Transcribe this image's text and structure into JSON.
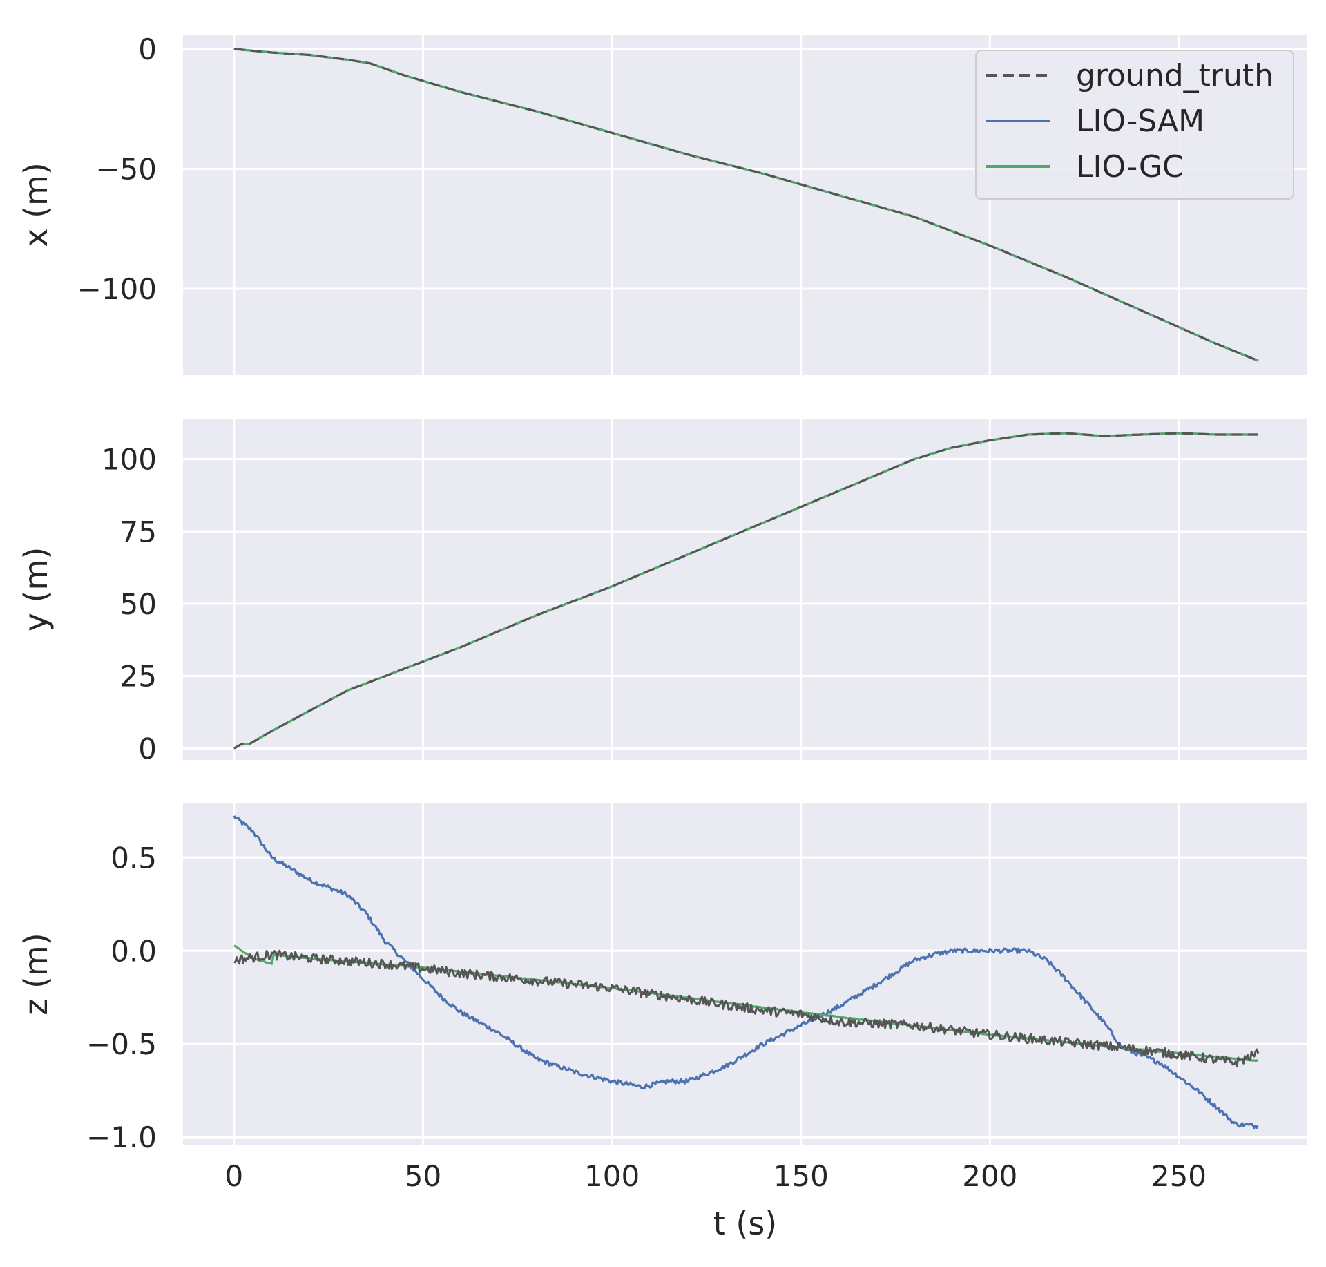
{
  "chart_data": {
    "type": "line",
    "xlabel": "t (s)",
    "xlim": [
      -13.5,
      284
    ],
    "xticks": [
      0,
      50,
      100,
      150,
      200,
      250
    ],
    "xtick_labels": [
      "0",
      "50",
      "100",
      "150",
      "200",
      "250"
    ],
    "grid": true,
    "legend": {
      "placement": "top-right",
      "panel": 0,
      "entries": [
        {
          "name": "ground_truth",
          "color": "#555555",
          "dash": "dashed"
        },
        {
          "name": "LIO-SAM",
          "color": "#4c72b0",
          "dash": "solid"
        },
        {
          "name": "LIO-GC",
          "color": "#55a868",
          "dash": "solid"
        }
      ]
    },
    "colors": {
      "ground_truth": "#555555",
      "LIO-SAM": "#4c72b0",
      "LIO-GC": "#55a868",
      "background": "#eaeaf2"
    },
    "panels": [
      {
        "ylabel": "x (m)",
        "ylim": [
          -136,
          6
        ],
        "yticks": [
          0,
          -50,
          -100
        ],
        "ytick_labels": [
          "0",
          "−50",
          "−100"
        ],
        "series": [
          {
            "name": "ground_truth",
            "noise": 0,
            "x": [
              0,
              10,
              20,
              30,
              36,
              45,
              60,
              80,
              100,
              120,
              140,
              160,
              180,
              200,
              220,
              240,
              260,
              271
            ],
            "y": [
              0,
              -1.5,
              -2.5,
              -4.5,
              -6,
              -11,
              -18,
              -26,
              -35,
              -44,
              -52,
              -61,
              -70,
              -82,
              -95,
              -109,
              -123,
              -130
            ]
          },
          {
            "name": "LIO-SAM",
            "noise": 0,
            "x": [
              0,
              10,
              20,
              30,
              36,
              45,
              60,
              80,
              100,
              120,
              140,
              160,
              180,
              200,
              220,
              240,
              260,
              271
            ],
            "y": [
              0,
              -1.5,
              -2.5,
              -4.5,
              -6,
              -11,
              -18,
              -26,
              -35,
              -44,
              -52,
              -61,
              -70,
              -82,
              -95,
              -109,
              -123,
              -130
            ]
          },
          {
            "name": "LIO-GC",
            "noise": 0,
            "x": [
              0,
              10,
              20,
              30,
              36,
              45,
              60,
              80,
              100,
              120,
              140,
              160,
              180,
              200,
              220,
              240,
              260,
              271
            ],
            "y": [
              0,
              -1.5,
              -2.5,
              -4.5,
              -6,
              -11,
              -18,
              -26,
              -35,
              -44,
              -52,
              -61,
              -70,
              -82,
              -95,
              -109,
              -123,
              -130
            ]
          }
        ]
      },
      {
        "ylabel": "y (m)",
        "ylim": [
          -4,
          114
        ],
        "yticks": [
          0,
          25,
          50,
          75,
          100
        ],
        "ytick_labels": [
          "0",
          "25",
          "50",
          "75",
          "100"
        ],
        "series": [
          {
            "name": "ground_truth",
            "noise": 0,
            "x": [
              0,
              2,
              4,
              10,
              20,
              30,
              40,
              50,
              60,
              80,
              100,
              120,
              140,
              160,
              180,
              190,
              200,
              210,
              220,
              230,
              240,
              250,
              260,
              271
            ],
            "y": [
              0,
              1.5,
              1.5,
              6,
              13,
              20,
              25,
              30,
              35,
              46,
              56,
              67,
              78,
              89,
              100,
              104,
              106.5,
              108.5,
              109,
              108,
              108.5,
              109,
              108.5,
              108.5
            ]
          },
          {
            "name": "LIO-SAM",
            "noise": 0,
            "x": [
              0,
              2,
              4,
              10,
              20,
              30,
              40,
              50,
              60,
              80,
              100,
              120,
              140,
              160,
              180,
              190,
              200,
              210,
              220,
              230,
              240,
              250,
              260,
              271
            ],
            "y": [
              0,
              1.5,
              1.5,
              6,
              13,
              20,
              25,
              30,
              35,
              46,
              56,
              67,
              78,
              89,
              100,
              104,
              106.5,
              108.5,
              109,
              108,
              108.5,
              109,
              108.5,
              108.5
            ]
          },
          {
            "name": "LIO-GC",
            "noise": 0,
            "x": [
              0,
              2,
              4,
              10,
              20,
              30,
              40,
              50,
              60,
              80,
              100,
              120,
              140,
              160,
              180,
              190,
              200,
              210,
              220,
              230,
              240,
              250,
              260,
              271
            ],
            "y": [
              0,
              1.5,
              1.5,
              6,
              13,
              20,
              25,
              30,
              35,
              46,
              56,
              67,
              78,
              89,
              100,
              104,
              106.5,
              108.5,
              109,
              108,
              108.5,
              109,
              108.5,
              108.5
            ]
          }
        ]
      },
      {
        "ylabel": "z (m)",
        "ylim": [
          -1.04,
          0.79
        ],
        "yticks": [
          0.5,
          0.0,
          -0.5,
          -1.0
        ],
        "ytick_labels": [
          "0.5",
          "0.0",
          "−0.5",
          "−1.0"
        ],
        "series": [
          {
            "name": "ground_truth",
            "noise": 0.025,
            "x": [
              0,
              10,
              20,
              40,
              60,
              80,
              100,
              120,
              140,
              150,
              160,
              180,
              200,
              220,
              240,
              255,
              265,
              271
            ],
            "y": [
              -0.05,
              -0.02,
              -0.04,
              -0.07,
              -0.12,
              -0.16,
              -0.2,
              -0.26,
              -0.32,
              -0.34,
              -0.38,
              -0.4,
              -0.45,
              -0.49,
              -0.53,
              -0.57,
              -0.6,
              -0.55
            ]
          },
          {
            "name": "LIO-SAM",
            "noise": 0.012,
            "x": [
              0,
              5,
              10,
              20,
              30,
              35,
              40,
              45,
              50,
              55,
              60,
              70,
              80,
              90,
              100,
              108,
              115,
              120,
              130,
              140,
              150,
              160,
              170,
              180,
              185,
              190,
              200,
              210,
              215,
              220,
              230,
              235,
              245,
              255,
              265,
              271
            ],
            "y": [
              0.72,
              0.64,
              0.5,
              0.38,
              0.3,
              0.2,
              0.05,
              -0.05,
              -0.15,
              -0.25,
              -0.33,
              -0.44,
              -0.58,
              -0.65,
              -0.7,
              -0.73,
              -0.7,
              -0.7,
              -0.62,
              -0.5,
              -0.4,
              -0.3,
              -0.18,
              -0.05,
              -0.02,
              0.0,
              0.0,
              0.0,
              -0.05,
              -0.15,
              -0.38,
              -0.52,
              -0.6,
              -0.75,
              -0.93,
              -0.94
            ]
          },
          {
            "name": "LIO-GC",
            "noise": 0.002,
            "x": [
              0,
              5,
              10,
              10.5,
              20,
              50,
              100,
              150,
              200,
              250,
              271
            ],
            "y": [
              0.03,
              -0.04,
              -0.07,
              -0.02,
              -0.04,
              -0.09,
              -0.2,
              -0.33,
              -0.45,
              -0.55,
              -0.59
            ]
          }
        ]
      }
    ]
  }
}
